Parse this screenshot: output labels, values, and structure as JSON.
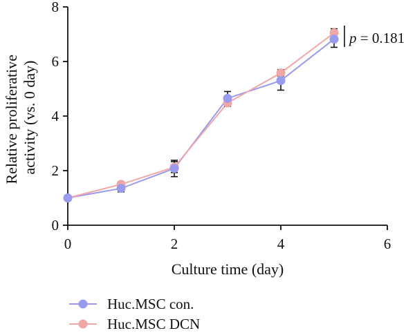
{
  "chart_data": {
    "type": "line",
    "xlabel": "Culture time (day)",
    "ylabel_lines": [
      "Relative proliferative",
      "activity (vs. 0 day)"
    ],
    "xlim": [
      0,
      6
    ],
    "ylim": [
      0,
      8
    ],
    "xticks": [
      0,
      2,
      4,
      6
    ],
    "yticks": [
      0,
      2,
      4,
      6,
      8
    ],
    "grid": false,
    "legend_position": "bottom-left",
    "annotation": {
      "p_symbol": "p",
      "p_rest": " = 0.181"
    },
    "series": [
      {
        "name": "Huc.MSC con.",
        "color": "#9a9aee",
        "x": [
          0,
          1,
          2,
          3,
          4,
          5
        ],
        "y": [
          1.0,
          1.35,
          2.08,
          4.65,
          5.3,
          6.82
        ],
        "err": [
          0.03,
          0.13,
          0.3,
          0.25,
          0.35,
          0.3
        ]
      },
      {
        "name": "Huc.MSC DCN",
        "color": "#f2a7a7",
        "x": [
          0,
          1,
          2,
          3,
          4,
          5
        ],
        "y": [
          1.0,
          1.5,
          2.13,
          4.48,
          5.58,
          7.05
        ],
        "err": [
          0.03,
          0.1,
          0.2,
          0.12,
          0.12,
          0.15
        ]
      }
    ]
  }
}
